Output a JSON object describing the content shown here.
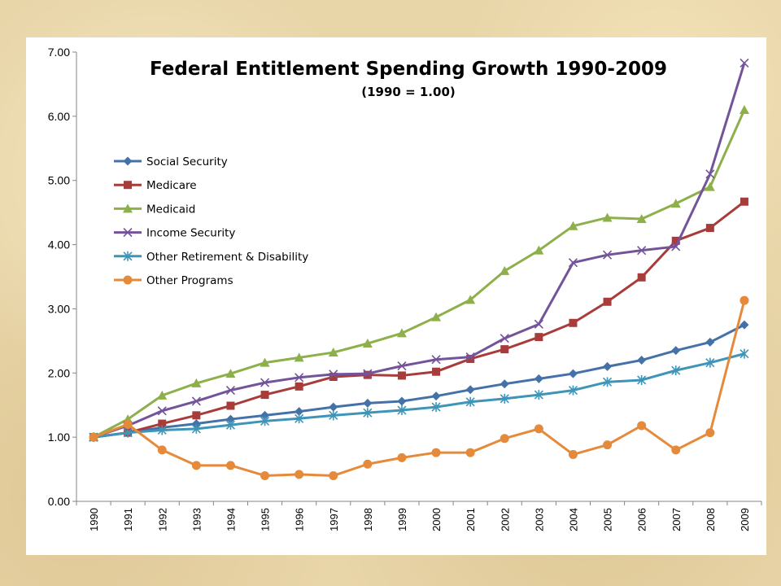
{
  "chart_data": {
    "type": "line",
    "title": "Federal Entitlement Spending Growth 1990-2009",
    "subtitle": "(1990 = 1.00)",
    "xlabel": "",
    "ylabel": "",
    "ylim": [
      0,
      7
    ],
    "yticks": [
      "0.00",
      "1.00",
      "2.00",
      "3.00",
      "4.00",
      "5.00",
      "6.00",
      "7.00"
    ],
    "x": [
      "1990",
      "1991",
      "1992",
      "1993",
      "1994",
      "1995",
      "1996",
      "1997",
      "1998",
      "1999",
      "2000",
      "2001",
      "2002",
      "2003",
      "2004",
      "2005",
      "2006",
      "2007",
      "2008",
      "2009"
    ],
    "grid": "none",
    "legend": "left",
    "series": [
      {
        "name": "Social Security",
        "color": "#4472a8",
        "marker": "diamond",
        "values": [
          1.0,
          1.07,
          1.15,
          1.21,
          1.28,
          1.34,
          1.4,
          1.47,
          1.53,
          1.56,
          1.64,
          1.74,
          1.83,
          1.91,
          1.99,
          2.1,
          2.2,
          2.35,
          2.48,
          2.75
        ]
      },
      {
        "name": "Medicare",
        "color": "#a83c3a",
        "marker": "square",
        "values": [
          1.0,
          1.07,
          1.21,
          1.34,
          1.49,
          1.66,
          1.79,
          1.94,
          1.97,
          1.96,
          2.02,
          2.22,
          2.37,
          2.56,
          2.78,
          3.11,
          3.49,
          4.06,
          4.26,
          4.67
        ]
      },
      {
        "name": "Medicaid",
        "color": "#8db04a",
        "marker": "triangle",
        "values": [
          1.0,
          1.28,
          1.65,
          1.84,
          1.99,
          2.16,
          2.24,
          2.32,
          2.46,
          2.62,
          2.87,
          3.14,
          3.59,
          3.91,
          4.29,
          4.42,
          4.4,
          4.64,
          4.9,
          6.1
        ]
      },
      {
        "name": "Income Security",
        "color": "#73539a",
        "marker": "x",
        "values": [
          1.0,
          1.18,
          1.41,
          1.56,
          1.73,
          1.85,
          1.93,
          1.98,
          1.99,
          2.11,
          2.21,
          2.25,
          2.54,
          2.76,
          3.72,
          3.84,
          3.91,
          3.97,
          5.1,
          6.83
        ]
      },
      {
        "name": "Other Retirement & Disability",
        "color": "#3e95b8",
        "marker": "star",
        "values": [
          1.0,
          1.07,
          1.11,
          1.13,
          1.19,
          1.25,
          1.29,
          1.34,
          1.38,
          1.42,
          1.47,
          1.55,
          1.6,
          1.66,
          1.73,
          1.86,
          1.89,
          2.04,
          2.16,
          2.3
        ]
      },
      {
        "name": "Other Programs",
        "color": "#e58a3a",
        "marker": "circle",
        "values": [
          1.0,
          1.2,
          0.8,
          0.56,
          0.56,
          0.4,
          0.42,
          0.4,
          0.58,
          0.68,
          0.76,
          0.76,
          0.98,
          1.13,
          0.73,
          0.88,
          1.18,
          0.8,
          1.07,
          3.13
        ]
      }
    ]
  }
}
